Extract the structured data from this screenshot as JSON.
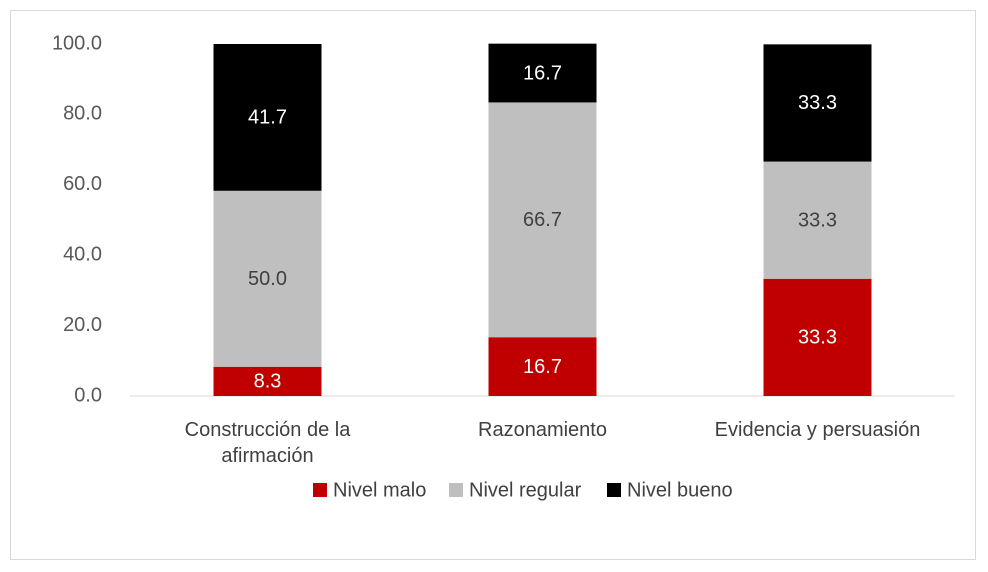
{
  "chart_data": {
    "type": "stacked_bar",
    "categories": [
      "Construcción de la afirmación",
      "Razonamiento",
      "Evidencia y persuasión"
    ],
    "series": [
      {
        "name": "Nivel malo",
        "color": "#c00000",
        "values": [
          8.3,
          16.7,
          33.3
        ],
        "value_labels": [
          "8.3",
          "16.7",
          "33.3"
        ]
      },
      {
        "name": "Nivel regular",
        "color": "#bfbfbf",
        "values": [
          50,
          66.7,
          33.3
        ],
        "value_labels": [
          "50.0",
          "66.7",
          "33.3"
        ]
      },
      {
        "name": "Nivel bueno",
        "color": "#000000",
        "values": [
          41.7,
          16.7,
          33.3
        ],
        "value_labels": [
          "41.7",
          "16.7",
          "33.3"
        ]
      }
    ],
    "ylim": [
      0,
      100
    ],
    "yticks": [
      {
        "value": 0,
        "label": "0.0"
      },
      {
        "value": 20,
        "label": "20.0"
      },
      {
        "value": 40,
        "label": "40.0"
      },
      {
        "value": 60,
        "label": "60.0"
      },
      {
        "value": 80,
        "label": "80.0"
      },
      {
        "value": 100,
        "label": "100.0"
      }
    ],
    "grid": false,
    "legend": "bottom"
  }
}
